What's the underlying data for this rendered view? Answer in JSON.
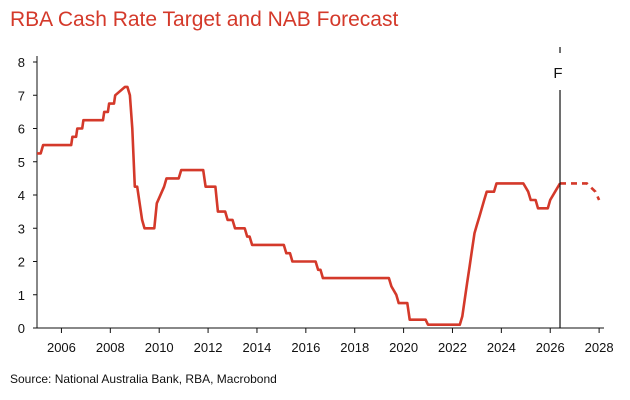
{
  "chart_data": {
    "type": "line",
    "title": "RBA Cash Rate Target and NAB Forecast",
    "xlabel": "",
    "ylabel": "",
    "xlim": [
      2005,
      2028.2
    ],
    "ylim": [
      0,
      8
    ],
    "x_ticks": [
      2006,
      2008,
      2010,
      2012,
      2014,
      2016,
      2018,
      2020,
      2022,
      2024,
      2026,
      2028
    ],
    "y_ticks": [
      0,
      1,
      2,
      3,
      4,
      5,
      6,
      7,
      8
    ],
    "grid": false,
    "line_color": "#d4392a",
    "series": [
      {
        "style": "solid",
        "x": [
          2005.0,
          2005.15,
          2005.25,
          2006.4,
          2006.45,
          2006.6,
          2006.65,
          2006.85,
          2006.9,
          2007.7,
          2007.75,
          2007.9,
          2007.95,
          2008.15,
          2008.2,
          2008.6,
          2008.7,
          2008.8,
          2008.9,
          2009.0,
          2009.1,
          2009.3,
          2009.4,
          2009.8,
          2009.9,
          2010.2,
          2010.3,
          2010.8,
          2010.9,
          2011.8,
          2011.9,
          2012.3,
          2012.4,
          2012.7,
          2012.8,
          2013.0,
          2013.1,
          2013.5,
          2013.6,
          2013.7,
          2013.8,
          2015.1,
          2015.2,
          2015.35,
          2015.45,
          2016.4,
          2016.5,
          2016.6,
          2016.7,
          2019.4,
          2019.5,
          2019.7,
          2019.8,
          2020.15,
          2020.25,
          2020.9,
          2021.0,
          2022.3,
          2022.4,
          2022.5,
          2022.6,
          2022.7,
          2022.8,
          2022.9,
          2023.0,
          2023.1,
          2023.2,
          2023.3,
          2023.4,
          2023.5,
          2023.7,
          2023.8,
          2024.9,
          2025.1,
          2025.2,
          2025.4,
          2025.5,
          2025.9,
          2026.0,
          2026.2,
          2026.4
        ],
        "y": [
          5.25,
          5.25,
          5.5,
          5.5,
          5.75,
          5.75,
          6.0,
          6.0,
          6.25,
          6.25,
          6.5,
          6.5,
          6.75,
          6.75,
          7.0,
          7.25,
          7.25,
          7.0,
          6.0,
          4.25,
          4.25,
          3.25,
          3.0,
          3.0,
          3.75,
          4.25,
          4.5,
          4.5,
          4.75,
          4.75,
          4.25,
          4.25,
          3.5,
          3.5,
          3.25,
          3.25,
          3.0,
          3.0,
          2.75,
          2.75,
          2.5,
          2.5,
          2.25,
          2.25,
          2.0,
          2.0,
          1.75,
          1.75,
          1.5,
          1.5,
          1.25,
          1.0,
          0.75,
          0.75,
          0.25,
          0.25,
          0.1,
          0.1,
          0.35,
          0.85,
          1.35,
          1.85,
          2.35,
          2.85,
          3.1,
          3.35,
          3.6,
          3.85,
          4.1,
          4.1,
          4.1,
          4.35,
          4.35,
          4.1,
          3.85,
          3.85,
          3.6,
          3.6,
          3.85,
          4.1,
          4.35
        ]
      },
      {
        "style": "dashed",
        "x": [
          2026.4,
          2027.5,
          2027.85,
          2028.0
        ],
        "y": [
          4.35,
          4.35,
          4.1,
          3.85
        ]
      }
    ],
    "annotations": [
      {
        "text": "F",
        "x": 2026.4
      }
    ],
    "source": "Source: National Australia Bank, RBA, Macrobond"
  }
}
